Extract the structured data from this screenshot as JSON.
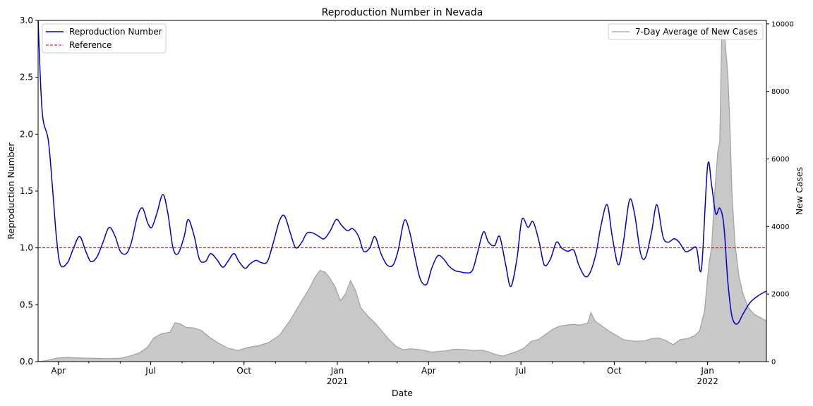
{
  "chart_data": {
    "type": "line",
    "title": "Reproduction Number in Nevada",
    "xlabel": "Date",
    "ylabel": "Reproduction Number",
    "y2label": "New Cases",
    "xlim": [
      "2020-03-12",
      "2022-02-28"
    ],
    "ylim": [
      0,
      3.0
    ],
    "y2lim": [
      0,
      10100
    ],
    "grid": false,
    "legend_left": "upper-left",
    "legend_right": "upper-right",
    "yticks": [
      0.0,
      0.5,
      1.0,
      1.5,
      2.0,
      2.5,
      3.0
    ],
    "y2ticks": [
      0,
      2000,
      4000,
      6000,
      8000,
      10000
    ],
    "xticks": [
      {
        "date": "2020-04-01",
        "label": "Apr",
        "sublabel": ""
      },
      {
        "date": "2020-07-01",
        "label": "Jul",
        "sublabel": ""
      },
      {
        "date": "2020-10-01",
        "label": "Oct",
        "sublabel": ""
      },
      {
        "date": "2021-01-01",
        "label": "Jan",
        "sublabel": "2021"
      },
      {
        "date": "2021-04-01",
        "label": "Apr",
        "sublabel": ""
      },
      {
        "date": "2021-07-01",
        "label": "Jul",
        "sublabel": ""
      },
      {
        "date": "2021-10-01",
        "label": "Oct",
        "sublabel": ""
      },
      {
        "date": "2022-01-01",
        "label": "Jan",
        "sublabel": "2022"
      }
    ],
    "series": [
      {
        "name": "Reproduction Number",
        "color": "#0000cc",
        "axis": "left",
        "points": [
          [
            "2020-03-12",
            3.0
          ],
          [
            "2020-03-16",
            2.2
          ],
          [
            "2020-03-22",
            1.95
          ],
          [
            "2020-03-26",
            1.55
          ],
          [
            "2020-03-30",
            1.1
          ],
          [
            "2020-04-03",
            0.85
          ],
          [
            "2020-04-10",
            0.87
          ],
          [
            "2020-04-16",
            1.0
          ],
          [
            "2020-04-22",
            1.1
          ],
          [
            "2020-04-28",
            0.97
          ],
          [
            "2020-05-03",
            0.88
          ],
          [
            "2020-05-09",
            0.92
          ],
          [
            "2020-05-15",
            1.05
          ],
          [
            "2020-05-21",
            1.18
          ],
          [
            "2020-05-27",
            1.1
          ],
          [
            "2020-06-01",
            0.97
          ],
          [
            "2020-06-07",
            0.95
          ],
          [
            "2020-06-12",
            1.05
          ],
          [
            "2020-06-18",
            1.28
          ],
          [
            "2020-06-23",
            1.35
          ],
          [
            "2020-06-28",
            1.22
          ],
          [
            "2020-07-02",
            1.18
          ],
          [
            "2020-07-07",
            1.3
          ],
          [
            "2020-07-13",
            1.47
          ],
          [
            "2020-07-18",
            1.3
          ],
          [
            "2020-07-23",
            1.0
          ],
          [
            "2020-07-28",
            0.95
          ],
          [
            "2020-08-03",
            1.1
          ],
          [
            "2020-08-07",
            1.25
          ],
          [
            "2020-08-13",
            1.1
          ],
          [
            "2020-08-18",
            0.9
          ],
          [
            "2020-08-24",
            0.88
          ],
          [
            "2020-08-29",
            0.95
          ],
          [
            "2020-09-04",
            0.9
          ],
          [
            "2020-09-10",
            0.83
          ],
          [
            "2020-09-15",
            0.88
          ],
          [
            "2020-09-21",
            0.95
          ],
          [
            "2020-09-26",
            0.88
          ],
          [
            "2020-10-02",
            0.82
          ],
          [
            "2020-10-07",
            0.86
          ],
          [
            "2020-10-13",
            0.89
          ],
          [
            "2020-10-18",
            0.87
          ],
          [
            "2020-10-24",
            0.88
          ],
          [
            "2020-10-30",
            1.05
          ],
          [
            "2020-11-05",
            1.24
          ],
          [
            "2020-11-10",
            1.28
          ],
          [
            "2020-11-16",
            1.12
          ],
          [
            "2020-11-21",
            1.0
          ],
          [
            "2020-11-27",
            1.05
          ],
          [
            "2020-12-02",
            1.13
          ],
          [
            "2020-12-08",
            1.13
          ],
          [
            "2020-12-14",
            1.1
          ],
          [
            "2020-12-19",
            1.08
          ],
          [
            "2020-12-25",
            1.15
          ],
          [
            "2020-12-31",
            1.25
          ],
          [
            "2021-01-05",
            1.2
          ],
          [
            "2021-01-11",
            1.15
          ],
          [
            "2021-01-16",
            1.17
          ],
          [
            "2021-01-22",
            1.1
          ],
          [
            "2021-01-27",
            0.97
          ],
          [
            "2021-02-02",
            1.0
          ],
          [
            "2021-02-07",
            1.1
          ],
          [
            "2021-02-13",
            0.95
          ],
          [
            "2021-02-19",
            0.85
          ],
          [
            "2021-02-25",
            0.85
          ],
          [
            "2021-03-02",
            0.98
          ],
          [
            "2021-03-08",
            1.24
          ],
          [
            "2021-03-13",
            1.15
          ],
          [
            "2021-03-19",
            0.9
          ],
          [
            "2021-03-24",
            0.72
          ],
          [
            "2021-03-30",
            0.68
          ],
          [
            "2021-04-04",
            0.82
          ],
          [
            "2021-04-10",
            0.93
          ],
          [
            "2021-04-16",
            0.9
          ],
          [
            "2021-04-21",
            0.84
          ],
          [
            "2021-04-27",
            0.8
          ],
          [
            "2021-05-02",
            0.79
          ],
          [
            "2021-05-08",
            0.78
          ],
          [
            "2021-05-14",
            0.8
          ],
          [
            "2021-05-19",
            0.95
          ],
          [
            "2021-05-25",
            1.14
          ],
          [
            "2021-05-30",
            1.05
          ],
          [
            "2021-06-05",
            1.02
          ],
          [
            "2021-06-10",
            1.1
          ],
          [
            "2021-06-16",
            0.85
          ],
          [
            "2021-06-21",
            0.66
          ],
          [
            "2021-06-27",
            0.9
          ],
          [
            "2021-07-02",
            1.25
          ],
          [
            "2021-07-08",
            1.18
          ],
          [
            "2021-07-13",
            1.23
          ],
          [
            "2021-07-19",
            1.05
          ],
          [
            "2021-07-24",
            0.85
          ],
          [
            "2021-07-30",
            0.9
          ],
          [
            "2021-08-05",
            1.05
          ],
          [
            "2021-08-10",
            1.0
          ],
          [
            "2021-08-16",
            0.97
          ],
          [
            "2021-08-22",
            0.98
          ],
          [
            "2021-08-27",
            0.85
          ],
          [
            "2021-09-02",
            0.75
          ],
          [
            "2021-09-07",
            0.78
          ],
          [
            "2021-09-13",
            0.95
          ],
          [
            "2021-09-18",
            1.2
          ],
          [
            "2021-09-24",
            1.38
          ],
          [
            "2021-09-29",
            1.1
          ],
          [
            "2021-10-05",
            0.85
          ],
          [
            "2021-10-10",
            1.05
          ],
          [
            "2021-10-16",
            1.42
          ],
          [
            "2021-10-21",
            1.3
          ],
          [
            "2021-10-27",
            0.95
          ],
          [
            "2021-11-01",
            0.92
          ],
          [
            "2021-11-07",
            1.15
          ],
          [
            "2021-11-12",
            1.38
          ],
          [
            "2021-11-18",
            1.1
          ],
          [
            "2021-11-23",
            1.05
          ],
          [
            "2021-11-29",
            1.08
          ],
          [
            "2021-12-04",
            1.05
          ],
          [
            "2021-12-10",
            0.97
          ],
          [
            "2021-12-15",
            0.98
          ],
          [
            "2021-12-21",
            1.0
          ],
          [
            "2021-12-26",
            0.82
          ],
          [
            "2022-01-01",
            1.72
          ],
          [
            "2022-01-05",
            1.55
          ],
          [
            "2022-01-09",
            1.3
          ],
          [
            "2022-01-13",
            1.35
          ],
          [
            "2022-01-17",
            1.2
          ],
          [
            "2022-01-21",
            0.7
          ],
          [
            "2022-01-25",
            0.4
          ],
          [
            "2022-01-30",
            0.33
          ],
          [
            "2022-02-05",
            0.42
          ],
          [
            "2022-02-12",
            0.52
          ],
          [
            "2022-02-20",
            0.58
          ],
          [
            "2022-02-28",
            0.62
          ]
        ]
      },
      {
        "name": "Reference",
        "color": "#cc0000",
        "axis": "left",
        "value": 1.0
      },
      {
        "name": "7-Day Average of New Cases",
        "color": "#a0a0a0",
        "fill": "#c8c8c8",
        "axis": "right",
        "points": [
          [
            "2020-03-12",
            0
          ],
          [
            "2020-03-20",
            30
          ],
          [
            "2020-03-27",
            80
          ],
          [
            "2020-04-01",
            110
          ],
          [
            "2020-04-10",
            120
          ],
          [
            "2020-04-20",
            110
          ],
          [
            "2020-05-01",
            100
          ],
          [
            "2020-05-10",
            95
          ],
          [
            "2020-05-20",
            90
          ],
          [
            "2020-06-01",
            100
          ],
          [
            "2020-06-10",
            160
          ],
          [
            "2020-06-20",
            260
          ],
          [
            "2020-06-28",
            430
          ],
          [
            "2020-07-04",
            700
          ],
          [
            "2020-07-12",
            830
          ],
          [
            "2020-07-20",
            870
          ],
          [
            "2020-07-25",
            1150
          ],
          [
            "2020-07-30",
            1120
          ],
          [
            "2020-08-05",
            1010
          ],
          [
            "2020-08-12",
            1000
          ],
          [
            "2020-08-20",
            920
          ],
          [
            "2020-08-28",
            720
          ],
          [
            "2020-09-05",
            560
          ],
          [
            "2020-09-15",
            400
          ],
          [
            "2020-09-25",
            330
          ],
          [
            "2020-10-05",
            420
          ],
          [
            "2020-10-15",
            470
          ],
          [
            "2020-10-25",
            560
          ],
          [
            "2020-11-05",
            780
          ],
          [
            "2020-11-15",
            1200
          ],
          [
            "2020-11-22",
            1550
          ],
          [
            "2020-11-29",
            1900
          ],
          [
            "2020-12-05",
            2200
          ],
          [
            "2020-12-10",
            2500
          ],
          [
            "2020-12-15",
            2700
          ],
          [
            "2020-12-20",
            2650
          ],
          [
            "2020-12-25",
            2450
          ],
          [
            "2020-12-30",
            2200
          ],
          [
            "2021-01-04",
            1800
          ],
          [
            "2021-01-09",
            2000
          ],
          [
            "2021-01-14",
            2400
          ],
          [
            "2021-01-19",
            2100
          ],
          [
            "2021-01-24",
            1600
          ],
          [
            "2021-01-31",
            1350
          ],
          [
            "2021-02-07",
            1150
          ],
          [
            "2021-02-14",
            900
          ],
          [
            "2021-02-21",
            650
          ],
          [
            "2021-02-28",
            450
          ],
          [
            "2021-03-07",
            350
          ],
          [
            "2021-03-14",
            380
          ],
          [
            "2021-03-21",
            360
          ],
          [
            "2021-03-28",
            330
          ],
          [
            "2021-04-04",
            280
          ],
          [
            "2021-04-11",
            300
          ],
          [
            "2021-04-18",
            320
          ],
          [
            "2021-04-25",
            360
          ],
          [
            "2021-05-02",
            360
          ],
          [
            "2021-05-09",
            350
          ],
          [
            "2021-05-16",
            330
          ],
          [
            "2021-05-23",
            340
          ],
          [
            "2021-05-30",
            290
          ],
          [
            "2021-06-06",
            210
          ],
          [
            "2021-06-13",
            160
          ],
          [
            "2021-06-20",
            230
          ],
          [
            "2021-06-27",
            300
          ],
          [
            "2021-07-04",
            400
          ],
          [
            "2021-07-11",
            600
          ],
          [
            "2021-07-18",
            650
          ],
          [
            "2021-07-25",
            800
          ],
          [
            "2021-08-01",
            950
          ],
          [
            "2021-08-08",
            1050
          ],
          [
            "2021-08-15",
            1080
          ],
          [
            "2021-08-22",
            1100
          ],
          [
            "2021-08-29",
            1080
          ],
          [
            "2021-09-05",
            1150
          ],
          [
            "2021-09-08",
            1450
          ],
          [
            "2021-09-12",
            1200
          ],
          [
            "2021-09-19",
            1050
          ],
          [
            "2021-09-26",
            900
          ],
          [
            "2021-10-03",
            780
          ],
          [
            "2021-10-10",
            650
          ],
          [
            "2021-10-17",
            620
          ],
          [
            "2021-10-24",
            600
          ],
          [
            "2021-10-31",
            620
          ],
          [
            "2021-11-07",
            680
          ],
          [
            "2021-11-14",
            700
          ],
          [
            "2021-11-21",
            620
          ],
          [
            "2021-11-28",
            500
          ],
          [
            "2021-12-05",
            650
          ],
          [
            "2021-12-12",
            680
          ],
          [
            "2021-12-19",
            760
          ],
          [
            "2021-12-24",
            900
          ],
          [
            "2021-12-29",
            1500
          ],
          [
            "2022-01-02",
            2800
          ],
          [
            "2022-01-05",
            3400
          ],
          [
            "2022-01-08",
            5000
          ],
          [
            "2022-01-11",
            6200
          ],
          [
            "2022-01-13",
            6500
          ],
          [
            "2022-01-15",
            9800
          ],
          [
            "2022-01-17",
            10000
          ],
          [
            "2022-01-19",
            9200
          ],
          [
            "2022-01-21",
            8500
          ],
          [
            "2022-01-23",
            7000
          ],
          [
            "2022-01-25",
            5000
          ],
          [
            "2022-01-28",
            3500
          ],
          [
            "2022-02-01",
            2500
          ],
          [
            "2022-02-05",
            2000
          ],
          [
            "2022-02-10",
            1600
          ],
          [
            "2022-02-16",
            1400
          ],
          [
            "2022-02-22",
            1300
          ],
          [
            "2022-02-28",
            1200
          ]
        ]
      }
    ]
  }
}
